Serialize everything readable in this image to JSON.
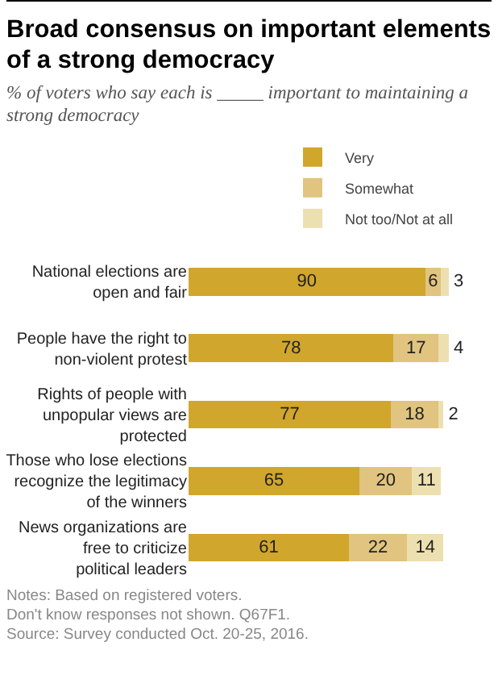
{
  "chart_data": {
    "type": "bar",
    "orientation": "horizontal",
    "stacked": true,
    "title": "Broad consensus on important elements of a strong democracy",
    "subtitle": "% of voters who say each is _____ important to maintaining a strong democracy",
    "categories": [
      "National elections are open and fair",
      "People have the right to non-violent protest",
      "Rights of people with unpopular views are protected",
      "Those who lose elections recognize the legitimacy of the winners",
      "News organizations are free to criticize political leaders"
    ],
    "series": [
      {
        "name": "Very",
        "color": "#d1a62c",
        "values": [
          90,
          78,
          77,
          65,
          61
        ]
      },
      {
        "name": "Somewhat",
        "color": "#e0c47f",
        "values": [
          6,
          17,
          18,
          20,
          22
        ]
      },
      {
        "name": "Not too/Not at all",
        "color": "#ede0b0",
        "values": [
          3,
          4,
          2,
          11,
          14
        ]
      }
    ],
    "data_labels": true,
    "legend": "top right",
    "grid": false,
    "tick_labels": "y",
    "annotations": [
      "Notes: Based on registered voters.",
      "Don't know responses not shown. Q67F1.",
      "Source: Survey conducted Oct. 20-25, 2016."
    ]
  }
}
